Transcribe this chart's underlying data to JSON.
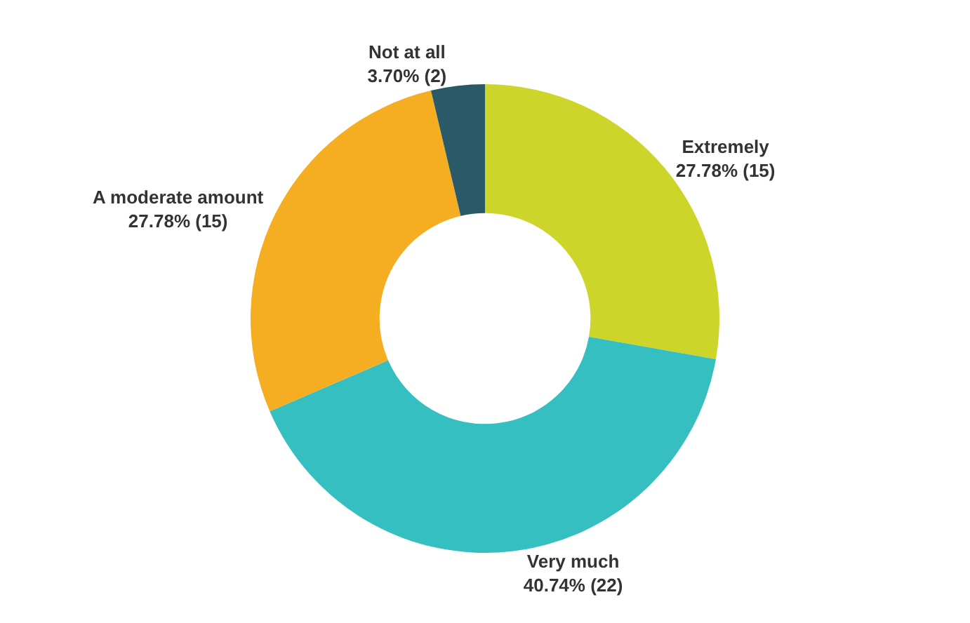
{
  "chart_data": {
    "type": "donut",
    "categories": [
      "Extremely",
      "Very much",
      "A moderate amount",
      "Not at all"
    ],
    "values": [
      15,
      22,
      15,
      2
    ],
    "value_labels": [
      "27.78% (15)",
      "40.74% (22)",
      "27.78% (15)",
      "3.70% (2)"
    ],
    "colors": [
      "#cdd52a",
      "#35bfc0",
      "#f5ae22",
      "#2a5a68"
    ],
    "legend": false
  }
}
